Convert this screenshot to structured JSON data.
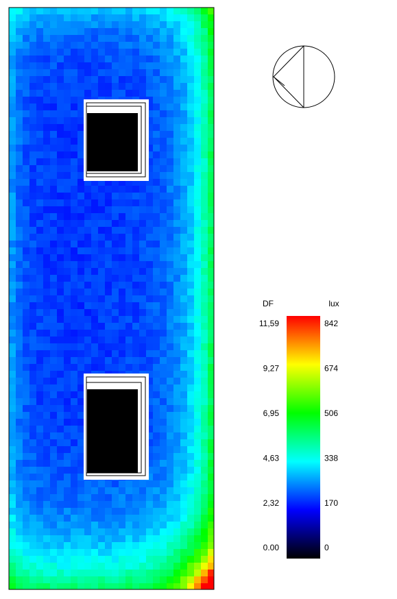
{
  "legend": {
    "df_header": "DF",
    "lux_header": "lux",
    "df_labels": [
      "11,59",
      "9,27",
      "6,95",
      "4,63",
      "2,32",
      "0.00"
    ],
    "lux_labels": [
      "842",
      "674",
      "506",
      "338",
      "170",
      "0"
    ]
  }
}
